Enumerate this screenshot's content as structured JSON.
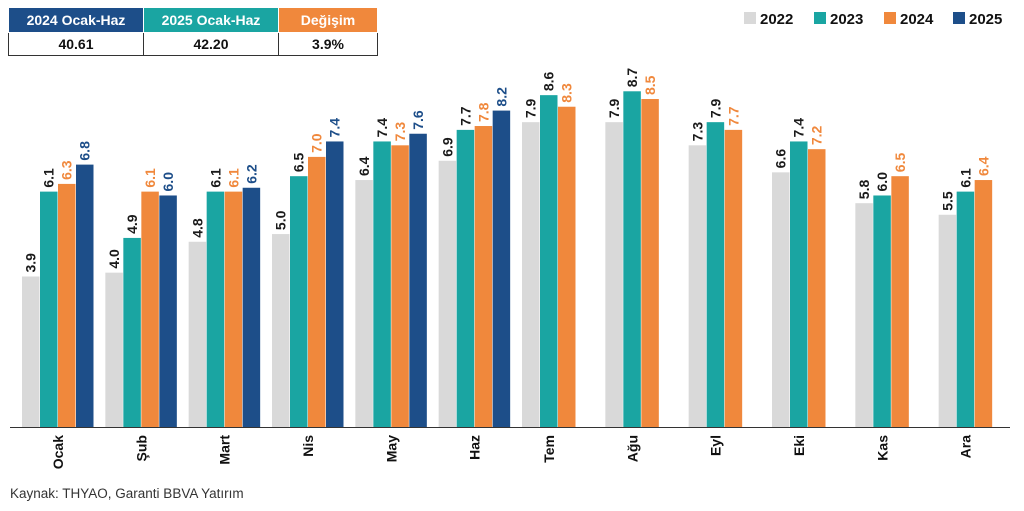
{
  "summary": {
    "headers": [
      "2024 Ocak-Haz",
      "2025 Ocak-Haz",
      "Değişim"
    ],
    "header_colors": [
      "#1d4e89",
      "#1aa5a2",
      "#f0883c"
    ],
    "values": [
      "40.61",
      "42.20",
      "3.9%"
    ]
  },
  "source": "Kaynak: THYAO, Garanti BBVA Yatırım",
  "chart_data": {
    "type": "bar",
    "categories": [
      "Ocak",
      "Şub",
      "Mart",
      "Nis",
      "May",
      "Haz",
      "Tem",
      "Ağu",
      "Eyl",
      "Eki",
      "Kas",
      "Ara"
    ],
    "series": [
      {
        "name": "2022",
        "color": "#d9d9d9",
        "label_color": "#1a1a1a",
        "values": [
          3.9,
          4.0,
          4.8,
          5.0,
          6.4,
          6.9,
          7.9,
          7.9,
          7.3,
          6.6,
          5.8,
          5.5
        ]
      },
      {
        "name": "2023",
        "color": "#1aa5a2",
        "label_color": "#1a1a1a",
        "values": [
          6.1,
          4.9,
          6.1,
          6.5,
          7.4,
          7.7,
          8.6,
          8.7,
          7.9,
          7.4,
          6.0,
          6.1
        ]
      },
      {
        "name": "2024",
        "color": "#f0883c",
        "label_color": "#f0883c",
        "values": [
          6.3,
          6.1,
          6.1,
          7.0,
          7.3,
          7.8,
          8.3,
          8.5,
          7.7,
          7.2,
          6.5,
          6.4
        ]
      },
      {
        "name": "2025",
        "color": "#1d4e89",
        "label_color": "#1d4e89",
        "values": [
          6.8,
          6.0,
          6.2,
          7.4,
          7.6,
          8.2,
          null,
          null,
          null,
          null,
          null,
          null
        ]
      }
    ],
    "ylim": [
      0,
      9.2
    ],
    "grid": false,
    "legend_position": "top-right"
  }
}
